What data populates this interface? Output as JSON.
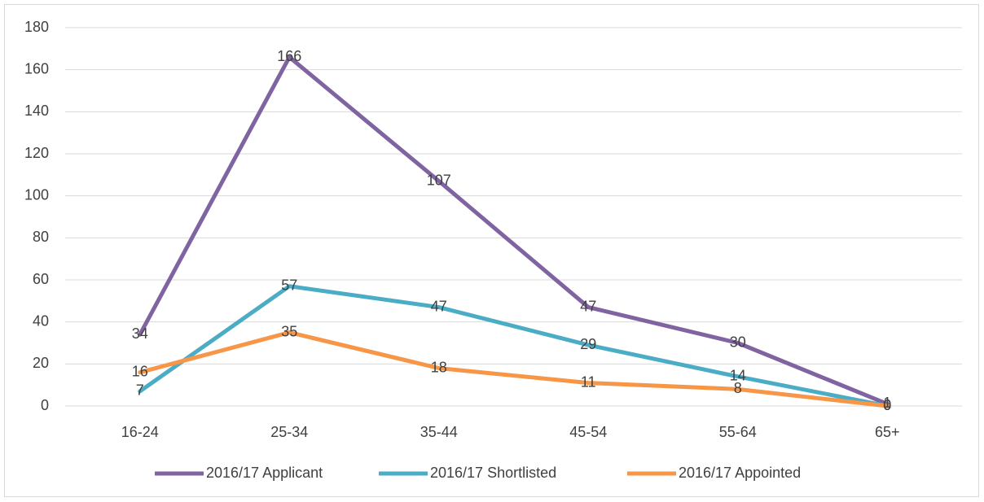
{
  "chart_data": {
    "type": "line",
    "categories": [
      "16-24",
      "25-34",
      "35-44",
      "45-54",
      "55-64",
      "65+"
    ],
    "series": [
      {
        "name": "2016/17 Applicant",
        "color": "#8064a2",
        "values": [
          34,
          166,
          107,
          47,
          30,
          1
        ]
      },
      {
        "name": "2016/17 Shortlisted",
        "color": "#4bacc6",
        "values": [
          7,
          57,
          47,
          29,
          14,
          0
        ]
      },
      {
        "name": "2016/17 Appointed",
        "color": "#f79646",
        "values": [
          16,
          35,
          18,
          11,
          8,
          0
        ]
      }
    ],
    "ylim": [
      0,
      180
    ],
    "yticks": [
      0,
      20,
      40,
      60,
      80,
      100,
      120,
      140,
      160,
      180
    ],
    "grid": true,
    "legend": "bottom"
  }
}
